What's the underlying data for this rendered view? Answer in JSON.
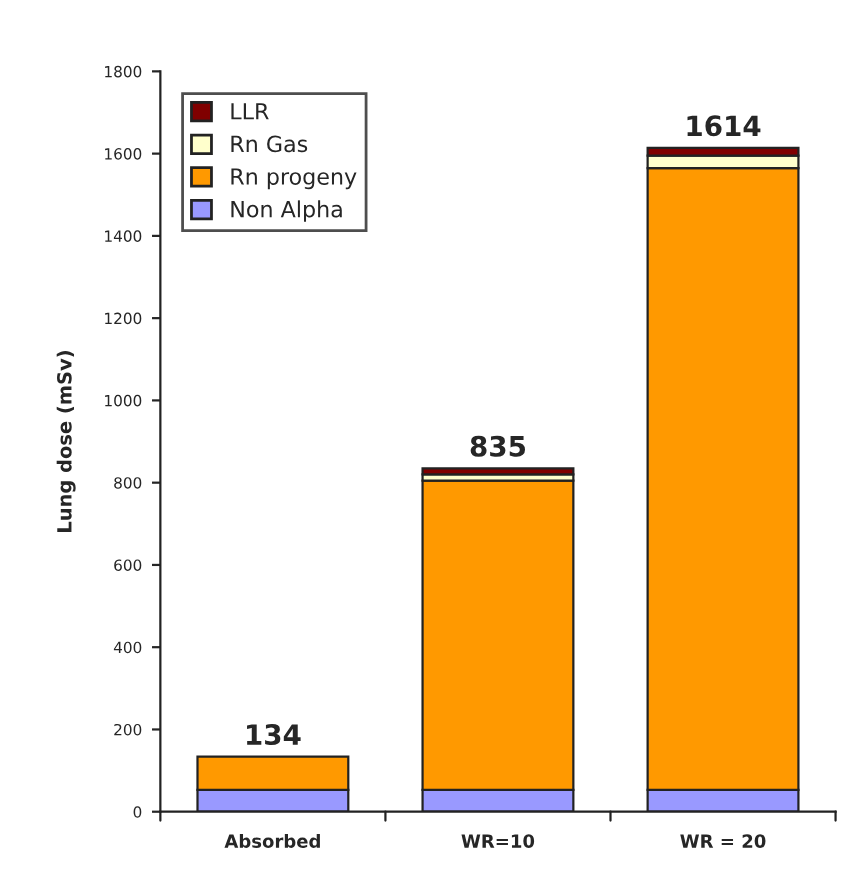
{
  "chart_data": {
    "type": "bar",
    "stacked": true,
    "ylabel": "Lung dose (mSv)",
    "categories": [
      "Absorbed",
      "WR=10",
      "WR = 20"
    ],
    "series": [
      {
        "name": "Non Alpha",
        "color": "#9999ff",
        "values": [
          53,
          53,
          53
        ]
      },
      {
        "name": "Rn progeny",
        "color": "#ff9900",
        "values": [
          81,
          752,
          1512
        ]
      },
      {
        "name": "Rn Gas",
        "color": "#ffffcc",
        "values": [
          null,
          15,
          30
        ]
      },
      {
        "name": "LLR",
        "color": "#800000",
        "values": [
          null,
          15,
          19
        ]
      }
    ],
    "totals": [
      "134",
      "835",
      "1614"
    ],
    "ylim": [
      0,
      1800
    ],
    "yticks": [
      0,
      200,
      400,
      600,
      800,
      1000,
      1200,
      1400,
      1600,
      1800
    ],
    "grid": false,
    "legend": "top left"
  }
}
